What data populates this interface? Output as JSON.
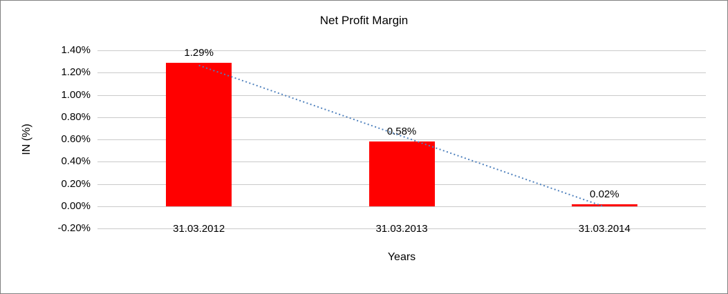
{
  "chart_data": {
    "type": "bar",
    "title": "Net Profit Margin",
    "xlabel": "Years",
    "ylabel": "IN (%)",
    "categories": [
      "31.03.2012",
      "31.03.2013",
      "31.03.2014"
    ],
    "values": [
      1.29,
      0.58,
      0.02
    ],
    "data_labels": [
      "1.29%",
      "0.58%",
      "0.02%"
    ],
    "ylim": [
      -0.2,
      1.4
    ],
    "ytick_step": 0.2,
    "ytick_labels": [
      "-0.20%",
      "0.00%",
      "0.20%",
      "0.40%",
      "0.60%",
      "0.80%",
      "1.00%",
      "1.20%",
      "1.40%"
    ],
    "grid": true,
    "legend": "none",
    "bar_color": "#ff0000",
    "gridline_color": "#c9c9c9",
    "trendline": {
      "fit": "linear",
      "style": "dotted",
      "color": "#4f81bd"
    }
  }
}
